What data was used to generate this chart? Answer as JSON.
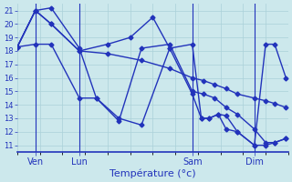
{
  "background_color": "#cce8ec",
  "grid_color": "#aad0d8",
  "line_color": "#2233bb",
  "xlabel": "Température (°c)",
  "ylim": [
    10.5,
    21.5
  ],
  "yticks": [
    11,
    12,
    13,
    14,
    15,
    16,
    17,
    18,
    19,
    20,
    21
  ],
  "xlim": [
    0,
    240
  ],
  "vline_positions": [
    16,
    55,
    155,
    210
  ],
  "xtick_positions": [
    16,
    55,
    155,
    210
  ],
  "xtick_labels": [
    "Ven",
    "Lun",
    "Sam",
    "Dim"
  ],
  "series": [
    {
      "x": [
        0,
        16,
        30,
        55,
        80,
        110,
        135,
        155,
        165,
        175,
        185,
        195,
        210,
        220,
        228,
        238
      ],
      "y": [
        18.3,
        21.0,
        20.0,
        18.0,
        17.8,
        17.3,
        16.7,
        16.0,
        15.8,
        15.5,
        15.2,
        14.8,
        14.5,
        14.3,
        14.1,
        13.8
      ]
    },
    {
      "x": [
        0,
        16,
        30,
        55,
        70,
        90,
        110,
        135,
        155,
        165,
        175,
        185,
        195,
        210,
        220,
        228,
        238
      ],
      "y": [
        18.3,
        21.0,
        21.2,
        18.2,
        14.5,
        12.8,
        18.2,
        18.5,
        15.0,
        14.8,
        14.5,
        13.8,
        13.3,
        12.2,
        11.2,
        11.2,
        11.5
      ]
    },
    {
      "x": [
        0,
        16,
        30,
        55,
        80,
        100,
        120,
        135,
        155,
        163,
        170,
        178,
        185,
        195,
        210,
        220,
        228,
        238
      ],
      "y": [
        18.3,
        21.0,
        20.0,
        18.0,
        18.5,
        19.0,
        20.5,
        18.2,
        14.8,
        13.0,
        13.0,
        13.3,
        13.2,
        12.0,
        11.0,
        18.5,
        18.5,
        16.0
      ]
    },
    {
      "x": [
        0,
        16,
        30,
        55,
        70,
        90,
        110,
        135,
        155,
        163,
        170,
        178,
        185,
        195,
        210,
        220,
        228,
        238
      ],
      "y": [
        18.3,
        18.5,
        18.5,
        14.5,
        14.5,
        13.0,
        12.5,
        18.2,
        18.5,
        13.0,
        13.0,
        13.3,
        12.2,
        12.0,
        11.0,
        11.0,
        11.2,
        11.5
      ]
    }
  ],
  "marker": "D",
  "markersize": 2.5,
  "linewidth": 1.0
}
